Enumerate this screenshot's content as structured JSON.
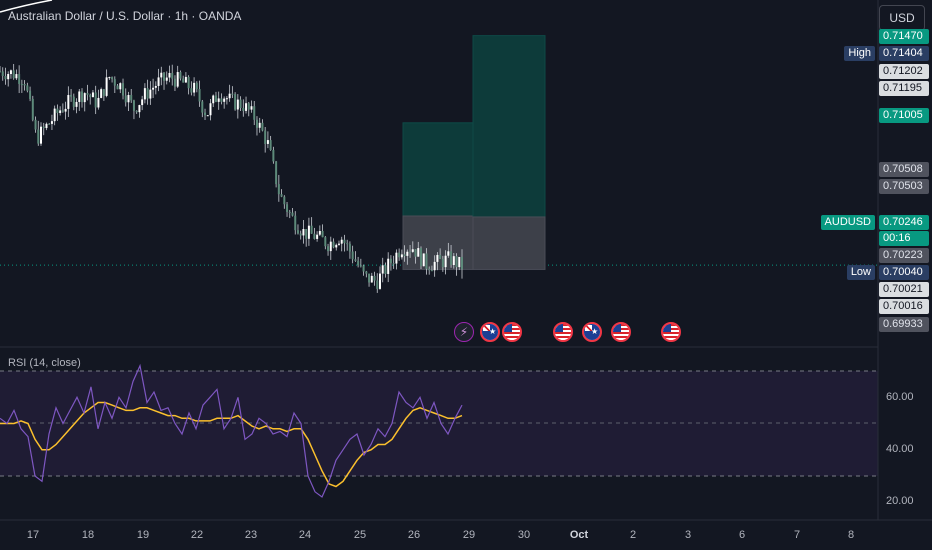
{
  "header": {
    "title": "Australian Dollar / U.S. Dollar · 1h · OANDA"
  },
  "currency_button": "USD",
  "rsi_panel": {
    "label": "RSI (14, close)",
    "ticks": [
      "60.00",
      "40.00",
      "20.00"
    ]
  },
  "price_scale": {
    "labels": [
      {
        "text": "0.71470",
        "style": "green"
      },
      {
        "text": "0.71404",
        "style": "navy",
        "tag": "High"
      },
      {
        "text": "0.71202",
        "style": "gray"
      },
      {
        "text": "0.71195",
        "style": "gray"
      },
      {
        "text": "0.71005",
        "style": "green"
      },
      {
        "text": "0.70508",
        "style": "dark"
      },
      {
        "text": "0.70503",
        "style": "dark"
      },
      {
        "text": "0.70246",
        "style": "green",
        "tag": "AUDUSD"
      },
      {
        "text": "00:16",
        "style": "green"
      },
      {
        "text": "0.70223",
        "style": "dark"
      },
      {
        "text": "0.70040",
        "style": "navy",
        "tag": "Low"
      },
      {
        "text": "0.70021",
        "style": "gray"
      },
      {
        "text": "0.70016",
        "style": "gray"
      },
      {
        "text": "0.69933",
        "style": "dark"
      }
    ]
  },
  "events": [
    "lightning-icon",
    "au-flag-icon",
    "us-flag-icon",
    "us-flag-icon",
    "au-flag-icon",
    "us-flag-icon",
    "us-flag-icon"
  ],
  "colors": {
    "up": "#089981",
    "down": "#f23645",
    "candle": "#e6e6e6",
    "rsi": "#7e57c2",
    "rsi_ma": "#fbc02d",
    "target_zone": "#0d3b3a",
    "stop_zone": "#3a3d47"
  },
  "chart_data": [
    {
      "type": "candlestick",
      "title": "Australian Dollar / U.S. Dollar · 1h · OANDA",
      "x_ticks": [
        "17",
        "18",
        "19",
        "22",
        "23",
        "24",
        "25",
        "26",
        "29",
        "30",
        "Oct",
        "2",
        "3",
        "6",
        "7",
        "8"
      ],
      "ylim": [
        0.699,
        0.715
      ],
      "close_series": [
        [
          "17",
          0.7128
        ],
        [
          "17",
          0.7127
        ],
        [
          "17",
          0.7124
        ],
        [
          "17",
          0.7092
        ],
        [
          "17",
          0.71
        ],
        [
          "18",
          0.7108
        ],
        [
          "18",
          0.7113
        ],
        [
          "18",
          0.7117
        ],
        [
          "18",
          0.7111
        ],
        [
          "18",
          0.7125
        ],
        [
          "19",
          0.712
        ],
        [
          "19",
          0.7108
        ],
        [
          "19",
          0.7116
        ],
        [
          "19",
          0.7122
        ],
        [
          "19",
          0.7125
        ],
        [
          "22",
          0.7122
        ],
        [
          "22",
          0.7118
        ],
        [
          "22",
          0.7105
        ],
        [
          "22",
          0.7117
        ],
        [
          "22",
          0.7112
        ],
        [
          "23",
          0.711
        ],
        [
          "23",
          0.7103
        ],
        [
          "23",
          0.709
        ],
        [
          "23",
          0.7062
        ],
        [
          "23",
          0.705
        ],
        [
          "24",
          0.7042
        ],
        [
          "24",
          0.704
        ],
        [
          "24",
          0.7036
        ],
        [
          "24",
          0.704
        ],
        [
          "24",
          0.703
        ],
        [
          "25",
          0.7018
        ],
        [
          "25",
          0.7016
        ],
        [
          "25",
          0.7025
        ],
        [
          "25",
          0.7034
        ],
        [
          "25",
          0.7034
        ],
        [
          "26",
          0.7025
        ],
        [
          "26",
          0.7026
        ],
        [
          "26",
          0.7028
        ],
        [
          "26",
          0.7024
        ]
      ],
      "high": 0.71404,
      "low": 0.7004,
      "last": 0.70246,
      "positions": [
        {
          "name": "position-1",
          "entry": 0.70508,
          "target": 0.71005,
          "stop": 0.70223
        },
        {
          "name": "position-2",
          "entry": 0.70503,
          "target": 0.7147,
          "stop": 0.70223
        }
      ]
    },
    {
      "type": "line",
      "title": "RSI (14, close)",
      "ylim": [
        15,
        75
      ],
      "bands": [
        70,
        30
      ],
      "series": [
        {
          "name": "RSI",
          "values": [
            52,
            50,
            55,
            48,
            45,
            30,
            28,
            46,
            56,
            50,
            55,
            60,
            54,
            64,
            48,
            58,
            52,
            60,
            56,
            66,
            72,
            58,
            62,
            55,
            56,
            50,
            46,
            54,
            48,
            57,
            60,
            63,
            48,
            52,
            60,
            44,
            46,
            52,
            50,
            46,
            47,
            45,
            54,
            50,
            30,
            24,
            22,
            28,
            36,
            40,
            44,
            46,
            38,
            42,
            48,
            45,
            50,
            62,
            58,
            56,
            60,
            52,
            58,
            50,
            46,
            52,
            57
          ]
        },
        {
          "name": "RSI MA",
          "values": [
            50,
            50,
            50,
            51,
            50,
            44,
            40,
            40,
            42,
            45,
            48,
            51,
            54,
            56,
            58,
            58,
            57,
            56,
            55,
            55,
            56,
            56,
            55,
            54,
            53,
            53,
            52,
            52,
            51,
            51,
            51,
            52,
            52,
            52,
            53,
            51,
            49,
            48,
            49,
            48,
            48,
            47,
            48,
            48,
            44,
            38,
            32,
            27,
            26,
            28,
            32,
            36,
            39,
            40,
            42,
            42,
            44,
            48,
            52,
            55,
            56,
            55,
            54,
            53,
            52,
            52,
            53
          ]
        }
      ]
    }
  ]
}
